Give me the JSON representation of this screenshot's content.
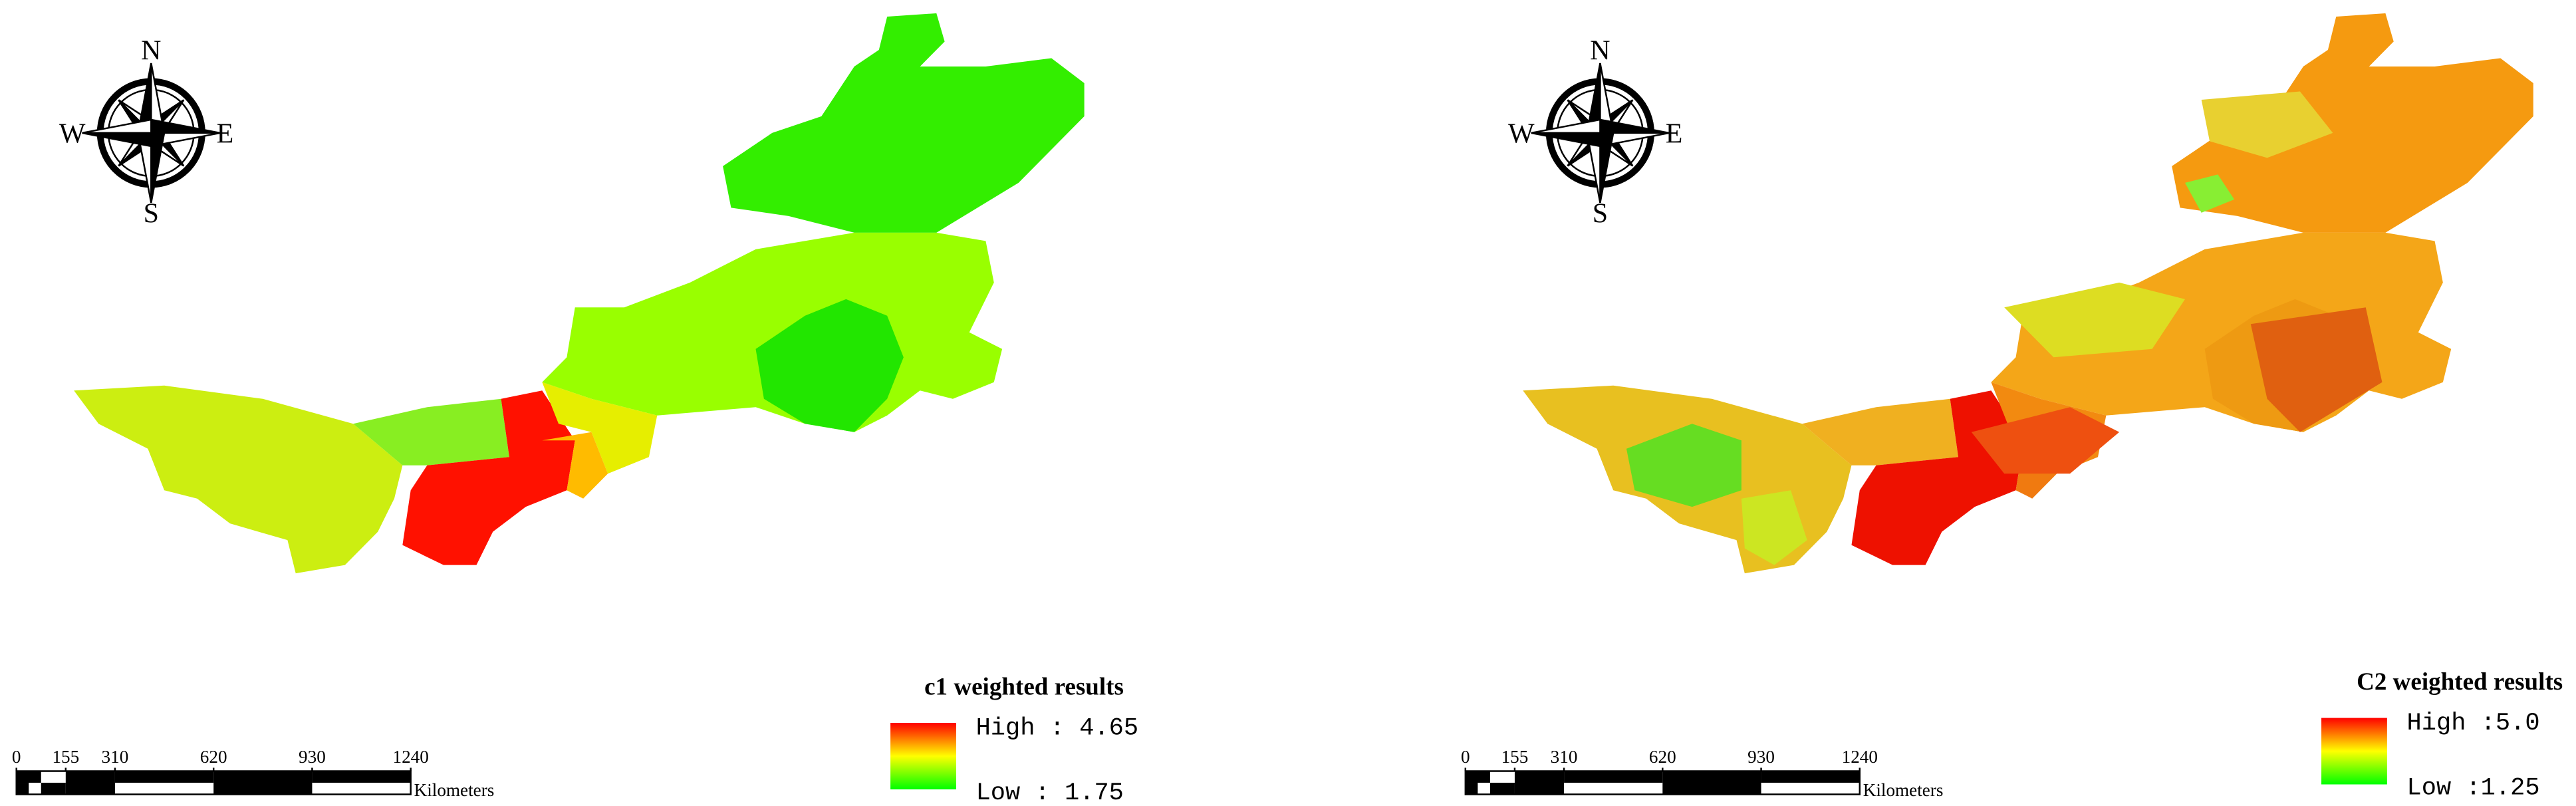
{
  "panels": [
    {
      "title": "c1 weighted results",
      "legend": {
        "high": "High : 4.65",
        "low": "Low : 1.75"
      },
      "compass": {
        "n": "N",
        "e": "E",
        "s": "S",
        "w": "W"
      },
      "scale_bar": {
        "ticks": [
          0,
          155,
          310,
          620,
          930,
          1240
        ],
        "unit": "Kilometers"
      }
    },
    {
      "title": "C2 weighted results",
      "legend": {
        "high": "High :5.0",
        "low": "Low :1.25"
      },
      "compass": {
        "n": "N",
        "e": "E",
        "s": "S",
        "w": "W"
      },
      "scale_bar": {
        "ticks": [
          0,
          155,
          310,
          620,
          930,
          1240
        ],
        "unit": "Kilometers"
      }
    }
  ]
}
